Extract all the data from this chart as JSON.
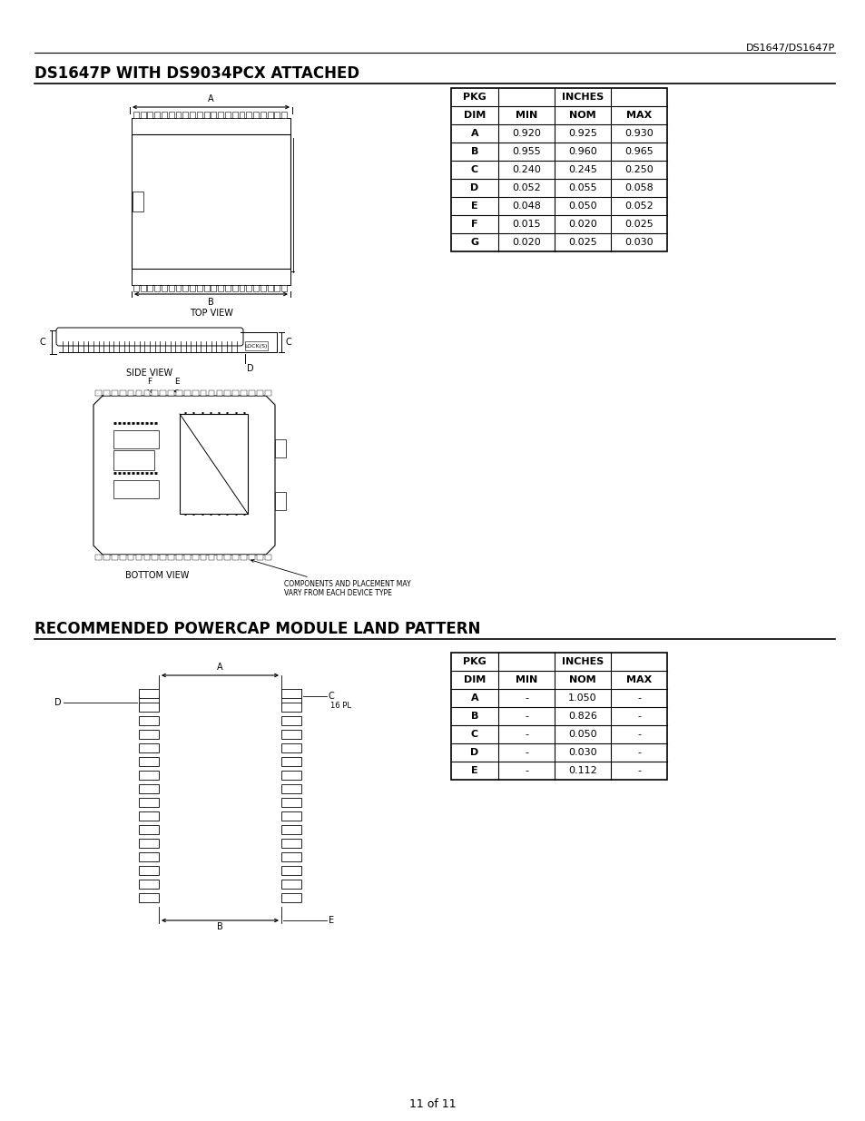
{
  "page_header_right": "DS1647/DS1647P",
  "section1_title": "DS1647P WITH DS9034PCX ATTACHED",
  "section2_title": "RECOMMENDED POWERCAP MODULE LAND PATTERN",
  "footer": "11 of 11",
  "table1": {
    "header_row1": [
      "PKG",
      "INCHES",
      "",
      ""
    ],
    "header_row2": [
      "DIM",
      "MIN",
      "NOM",
      "MAX"
    ],
    "rows": [
      [
        "A",
        "0.920",
        "0.925",
        "0.930"
      ],
      [
        "B",
        "0.955",
        "0.960",
        "0.965"
      ],
      [
        "C",
        "0.240",
        "0.245",
        "0.250"
      ],
      [
        "D",
        "0.052",
        "0.055",
        "0.058"
      ],
      [
        "E",
        "0.048",
        "0.050",
        "0.052"
      ],
      [
        "F",
        "0.015",
        "0.020",
        "0.025"
      ],
      [
        "G",
        "0.020",
        "0.025",
        "0.030"
      ]
    ]
  },
  "table2": {
    "header_row1": [
      "PKG",
      "INCHES",
      "",
      ""
    ],
    "header_row2": [
      "DIM",
      "MIN",
      "NOM",
      "MAX"
    ],
    "rows": [
      [
        "A",
        "-",
        "1.050",
        "-"
      ],
      [
        "B",
        "-",
        "0.826",
        "-"
      ],
      [
        "C",
        "-",
        "0.050",
        "-"
      ],
      [
        "D",
        "-",
        "0.030",
        "-"
      ],
      [
        "E",
        "-",
        "0.112",
        "-"
      ]
    ]
  }
}
